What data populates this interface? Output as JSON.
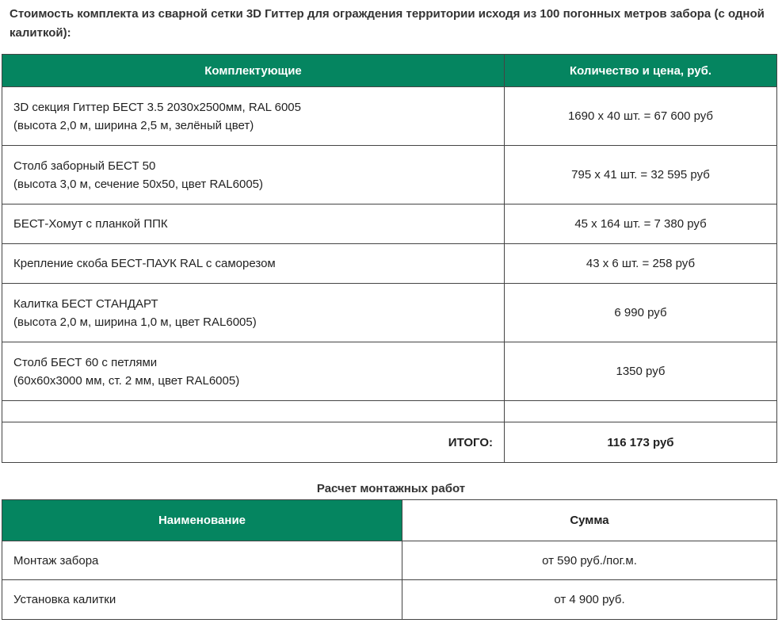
{
  "intro": "Стоимость комплекта из сварной сетки 3D Гиттер для ограждения территории исходя из 100 погонных метров забора (с одной калиткой):",
  "table1": {
    "headers": [
      "Комплектующие",
      "Количество и цена, руб."
    ],
    "rows": [
      {
        "name": "3D секция Гиттер БЕСТ 3.5 2030x2500мм, RAL 6005",
        "sub": "(высота 2,0 м, ширина 2,5 м, зелёный цвет)",
        "price": "1690 х 40 шт. = 67 600 руб"
      },
      {
        "name": "Столб заборный БЕСТ 50",
        "sub": "(высота 3,0 м, сечение 50х50, цвет RAL6005)",
        "price": "795 х 41 шт. = 32 595 руб"
      },
      {
        "name": "БЕСТ-Хомут с планкой ППК",
        "sub": "",
        "price": "45 х 164 шт. = 7 380 руб"
      },
      {
        "name": "Крепление скоба БЕСТ-ПАУК RAL с саморезом",
        "sub": "",
        "price": "43 х 6 шт. = 258 руб"
      },
      {
        "name": "Калитка БЕСТ СТАНДАРТ",
        "sub": "(высота 2,0 м, ширина 1,0 м, цвет RAL6005)",
        "price": "6 990 руб"
      },
      {
        "name": "Столб БЕСТ 60 с петлями",
        "sub": "(60х60х3000 мм, ст. 2 мм, цвет RAL6005)",
        "price": "1350 руб"
      }
    ],
    "total_label": "ИТОГО:",
    "total_value": "116 173 руб"
  },
  "table2": {
    "caption": "Расчет монтажных работ",
    "headers": [
      "Наименование",
      "Сумма"
    ],
    "rows": [
      {
        "name": "Монтаж забора",
        "price": "от 590 руб./пог.м."
      },
      {
        "name": "Установка калитки",
        "price": "от 4 900 руб."
      }
    ]
  },
  "colors": {
    "header_green": "#058560"
  }
}
